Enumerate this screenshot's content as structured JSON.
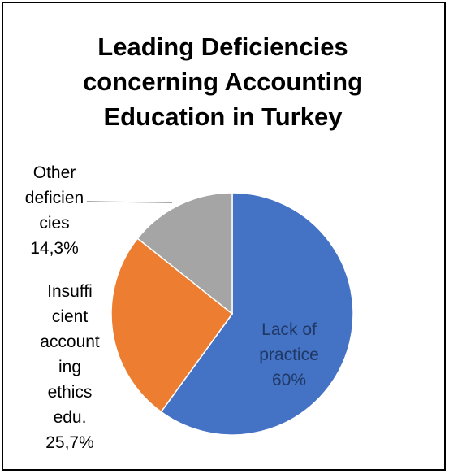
{
  "chart_data": {
    "type": "pie",
    "title_lines": [
      "Leading Deficiencies",
      "concerning Accounting",
      "Education in Turkey"
    ],
    "slices": [
      {
        "name": "Lack of practice",
        "value": 60,
        "color": "#4472C4",
        "label_lines": [
          "Lack of",
          "practice",
          "60%"
        ],
        "label_color": "#1F3864"
      },
      {
        "name": "Insufficient accounting ethics edu.",
        "value": 25.7,
        "color": "#ED7D31",
        "label_lines": [
          "Insuffi",
          "cient",
          "account",
          "ing",
          "ethics",
          "edu.",
          "25,7%"
        ],
        "label_color": "#000000"
      },
      {
        "name": "Other deficiencies",
        "value": 14.3,
        "color": "#A5A5A5",
        "label_lines": [
          "Other",
          "deficien",
          "cies",
          "14,3%"
        ],
        "label_color": "#000000"
      }
    ],
    "start_angle_deg": 0,
    "direction": "clockwise",
    "legend": "none",
    "data_labels": "inside-first-outside-others"
  }
}
